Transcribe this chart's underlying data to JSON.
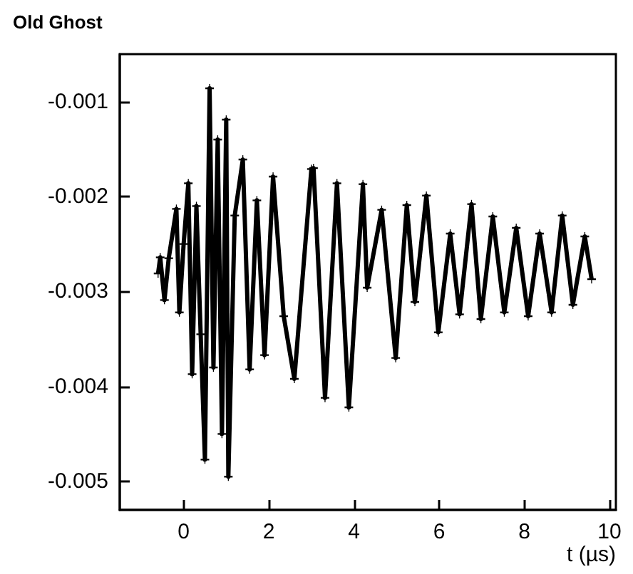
{
  "chart_data": {
    "type": "line",
    "title": "Old Ghost",
    "xlabel": "t (µs)",
    "xlim": [
      -1.5,
      10.15
    ],
    "ylim": [
      -0.0053,
      -0.0005
    ],
    "xticks": [
      0,
      2,
      4,
      6,
      8,
      10
    ],
    "yticks": [
      -0.001,
      -0.002,
      -0.003,
      -0.004,
      -0.005
    ],
    "grid": false,
    "marker": "cross",
    "line_style": "solid",
    "series": [
      {
        "color": "#000000",
        "x": [
          -0.6,
          -0.55,
          -0.45,
          -0.35,
          -0.17,
          -0.1,
          0.0,
          0.11,
          0.2,
          0.3,
          0.4,
          0.5,
          0.61,
          0.7,
          0.8,
          0.9,
          1.0,
          1.05,
          1.2,
          1.39,
          1.55,
          1.72,
          1.9,
          2.1,
          2.35,
          2.6,
          3.0,
          3.05,
          3.32,
          3.6,
          3.88,
          4.21,
          4.31,
          4.65,
          4.98,
          5.24,
          5.43,
          5.7,
          5.98,
          6.26,
          6.48,
          6.76,
          6.98,
          7.26,
          7.53,
          7.81,
          8.09,
          8.36,
          8.64,
          8.89,
          9.14,
          9.42,
          9.58
        ],
        "values": [
          -0.00281,
          -0.00264,
          -0.00309,
          -0.00265,
          -0.00213,
          -0.00322,
          -0.0025,
          -0.00186,
          -0.00387,
          -0.0021,
          -0.00345,
          -0.00477,
          -0.00086,
          -0.0038,
          -0.0014,
          -0.0045,
          -0.00119,
          -0.00495,
          -0.0022,
          -0.00161,
          -0.00382,
          -0.00204,
          -0.00367,
          -0.00179,
          -0.00326,
          -0.00392,
          -0.00171,
          -0.0017,
          -0.00412,
          -0.00186,
          -0.00422,
          -0.00187,
          -0.00296,
          -0.00214,
          -0.0037,
          -0.00209,
          -0.00311,
          -0.00199,
          -0.00343,
          -0.00239,
          -0.00324,
          -0.00208,
          -0.00329,
          -0.00221,
          -0.00322,
          -0.00233,
          -0.00326,
          -0.00239,
          -0.00322,
          -0.0022,
          -0.00314,
          -0.00242,
          -0.00287
        ]
      }
    ]
  }
}
